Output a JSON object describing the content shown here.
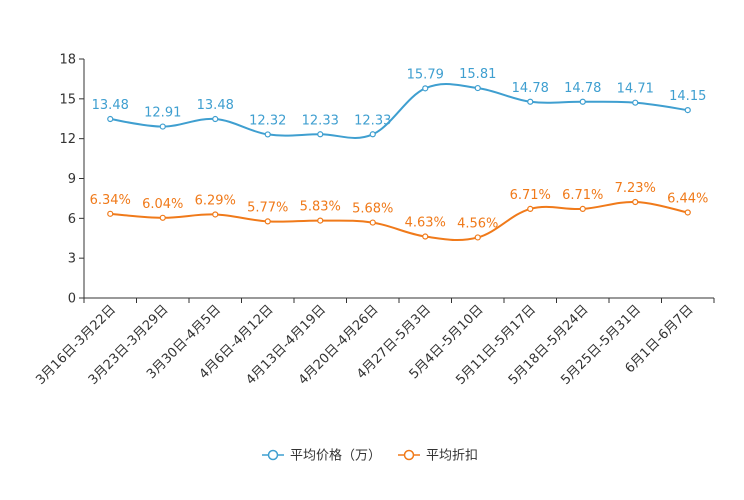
{
  "chart_data": {
    "type": "line",
    "categories": [
      "3月16日-3月22日",
      "3月23日-3月29日",
      "3月30日-4月5日",
      "4月6日-4月12日",
      "4月13日-4月19日",
      "4月20日-4月26日",
      "4月27日-5月3日",
      "5月4日-5月10日",
      "5月11日-5月17日",
      "5月18日-5月24日",
      "5月25日-5月31日",
      "6月1日-6月7日"
    ],
    "ylim": [
      0,
      18
    ],
    "yticks": [
      0,
      3,
      6,
      9,
      12,
      15,
      18
    ],
    "grid": false,
    "legend_position": "bottom-center",
    "series": [
      {
        "name": "平均价格（万）",
        "color": "#3f9fd0",
        "values": [
          13.48,
          12.91,
          13.48,
          12.32,
          12.33,
          12.33,
          15.79,
          15.81,
          14.78,
          14.78,
          14.71,
          14.15
        ],
        "labels": [
          "13.48",
          "12.91",
          "13.48",
          "12.32",
          "12.33",
          "12.33",
          "15.79",
          "15.81",
          "14.78",
          "14.78",
          "14.71",
          "14.15"
        ]
      },
      {
        "name": "平均折扣",
        "color": "#f07a1a",
        "values": [
          6.34,
          6.04,
          6.29,
          5.77,
          5.83,
          5.68,
          4.63,
          4.56,
          6.71,
          6.71,
          7.23,
          6.44
        ],
        "labels": [
          "6.34%",
          "6.04%",
          "6.29%",
          "5.77%",
          "5.83%",
          "5.68%",
          "4.63%",
          "4.56%",
          "6.71%",
          "6.71%",
          "7.23%",
          "6.44%"
        ]
      }
    ]
  }
}
